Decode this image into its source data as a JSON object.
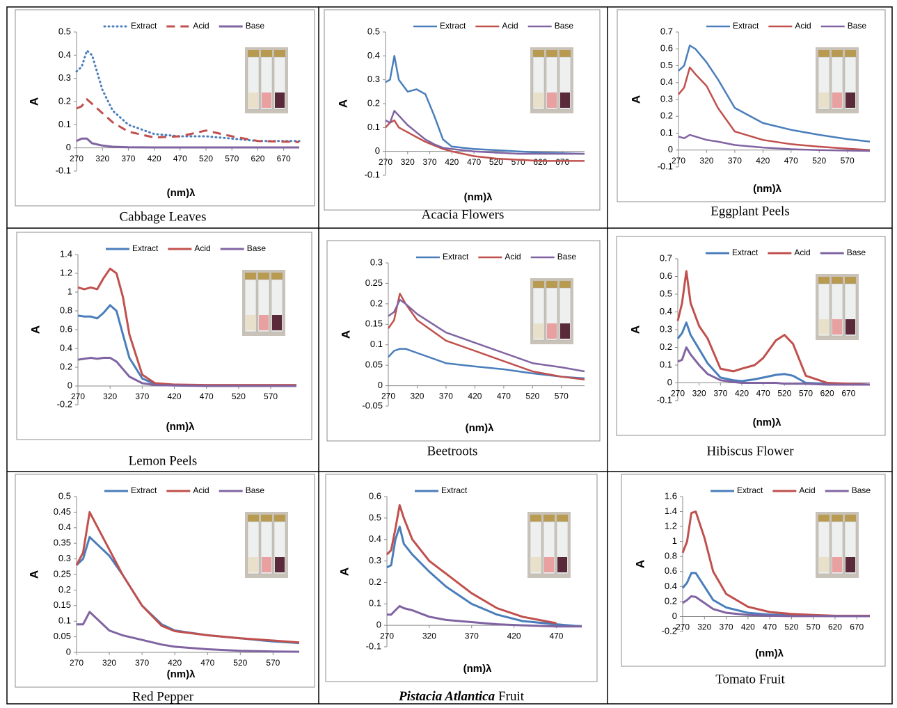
{
  "chart_data": [
    {
      "type": "line",
      "caption": "Cabbage Leaves",
      "x_label": "(nm)λ",
      "y_label": "A",
      "legend": "top",
      "line_width": 3,
      "x": [
        270,
        280,
        290,
        300,
        320,
        340,
        370,
        420,
        470,
        520,
        570,
        620,
        700
      ],
      "xlim": [
        270,
        700
      ],
      "xticks": [
        270,
        320,
        370,
        420,
        470,
        520,
        570,
        620,
        670
      ],
      "ylim": [
        -0.1,
        0.5
      ],
      "yticks": [
        -0.1,
        0,
        0.1,
        0.2,
        0.3,
        0.4,
        0.5
      ],
      "series": [
        {
          "name": "Extract",
          "color": "#4a7ebb",
          "dash": "dotted",
          "values": [
            0.33,
            0.35,
            0.42,
            0.4,
            0.25,
            0.16,
            0.1,
            0.06,
            0.05,
            0.05,
            0.04,
            0.03,
            0.03
          ]
        },
        {
          "name": "Acid",
          "color": "#c0504d",
          "dash": "dashed",
          "values": [
            0.17,
            0.18,
            0.21,
            0.19,
            0.15,
            0.11,
            0.07,
            0.045,
            0.05,
            0.075,
            0.05,
            0.03,
            0.025
          ]
        },
        {
          "name": "Base",
          "color": "#8064a2",
          "values": [
            0.03,
            0.04,
            0.04,
            0.02,
            0.01,
            0.005,
            0.003,
            0.002,
            0.002,
            0.002,
            0.002,
            0.002,
            0.002
          ]
        }
      ]
    },
    {
      "type": "line",
      "caption": "Acacia Flowers",
      "x_label": "(nm)λ",
      "y_label": "A",
      "legend": "top",
      "line_width": 2.5,
      "x": [
        270,
        280,
        290,
        300,
        320,
        340,
        360,
        380,
        400,
        420,
        470,
        520,
        570,
        620,
        720
      ],
      "xlim": [
        270,
        720
      ],
      "xticks": [
        270,
        320,
        370,
        420,
        470,
        520,
        570,
        620,
        670
      ],
      "ylim": [
        -0.1,
        0.5
      ],
      "yticks": [
        -0.1,
        0,
        0.1,
        0.2,
        0.3,
        0.4,
        0.5
      ],
      "series": [
        {
          "name": "Extract",
          "color": "#4a7ebb",
          "values": [
            0.29,
            0.3,
            0.4,
            0.3,
            0.25,
            0.26,
            0.24,
            0.15,
            0.05,
            0.02,
            0.01,
            0.005,
            0,
            -0.005,
            -0.01
          ]
        },
        {
          "name": "Acid",
          "color": "#c0504d",
          "values": [
            0.1,
            0.12,
            0.13,
            0.1,
            0.08,
            0.06,
            0.04,
            0.025,
            0.01,
            0,
            -0.02,
            -0.03,
            -0.035,
            -0.04,
            -0.04
          ]
        },
        {
          "name": "Base",
          "color": "#8064a2",
          "values": [
            0.13,
            0.12,
            0.17,
            0.15,
            0.11,
            0.08,
            0.05,
            0.03,
            0.015,
            0.01,
            0,
            -0.005,
            -0.01,
            -0.01,
            -0.01
          ]
        }
      ]
    },
    {
      "type": "line",
      "caption": "Eggplant Peels",
      "x_label": "(nm)λ",
      "y_label": "A",
      "legend": "top",
      "line_width": 2.5,
      "x": [
        270,
        280,
        290,
        300,
        320,
        340,
        370,
        420,
        470,
        520,
        570,
        610
      ],
      "xlim": [
        270,
        610
      ],
      "xticks": [
        270,
        320,
        370,
        420,
        470,
        520,
        570
      ],
      "ylim": [
        -0.1,
        0.7
      ],
      "yticks": [
        -0.1,
        0,
        0.1,
        0.2,
        0.3,
        0.4,
        0.5,
        0.6,
        0.7
      ],
      "series": [
        {
          "name": "Extract",
          "color": "#4a7ebb",
          "values": [
            0.47,
            0.5,
            0.62,
            0.6,
            0.52,
            0.42,
            0.25,
            0.16,
            0.12,
            0.09,
            0.065,
            0.05
          ]
        },
        {
          "name": "Acid",
          "color": "#c0504d",
          "values": [
            0.33,
            0.37,
            0.49,
            0.45,
            0.38,
            0.25,
            0.11,
            0.06,
            0.035,
            0.02,
            0.008,
            0
          ]
        },
        {
          "name": "Base",
          "color": "#8064a2",
          "values": [
            0.08,
            0.07,
            0.09,
            0.08,
            0.06,
            0.05,
            0.03,
            0.015,
            0.005,
            0,
            -0.003,
            -0.005
          ]
        }
      ]
    },
    {
      "type": "line",
      "caption": "Lemon Peels",
      "x_label": "(nm)λ",
      "y_label": "A",
      "legend": "top",
      "line_width": 3,
      "x": [
        270,
        280,
        290,
        300,
        310,
        320,
        330,
        340,
        350,
        370,
        390,
        420,
        470,
        520,
        570,
        610
      ],
      "xlim": [
        270,
        610
      ],
      "xticks": [
        270,
        320,
        370,
        420,
        470,
        520,
        570
      ],
      "ylim": [
        -0.2,
        1.4
      ],
      "yticks": [
        -0.2,
        0,
        0.2,
        0.4,
        0.6,
        0.8,
        1,
        1.2,
        1.4
      ],
      "series": [
        {
          "name": "Extract",
          "color": "#4a7ebb",
          "values": [
            0.75,
            0.74,
            0.74,
            0.72,
            0.78,
            0.86,
            0.8,
            0.55,
            0.3,
            0.08,
            0.02,
            0.01,
            0.005,
            0.005,
            0.005,
            0.005
          ]
        },
        {
          "name": "Acid",
          "color": "#c0504d",
          "values": [
            1.05,
            1.03,
            1.05,
            1.03,
            1.15,
            1.25,
            1.2,
            0.95,
            0.55,
            0.12,
            0.03,
            0.015,
            0.01,
            0.01,
            0.01,
            0.01
          ]
        },
        {
          "name": "Base",
          "color": "#8064a2",
          "values": [
            0.28,
            0.29,
            0.3,
            0.29,
            0.3,
            0.3,
            0.26,
            0.18,
            0.1,
            0.03,
            0.01,
            0.005,
            0,
            0,
            0,
            0
          ]
        }
      ]
    },
    {
      "type": "line",
      "caption": "Beetroots",
      "x_label": "(nm)λ",
      "y_label": "A",
      "legend": "top",
      "line_width": 2.5,
      "x": [
        270,
        280,
        290,
        300,
        320,
        370,
        420,
        470,
        520,
        570,
        610
      ],
      "xlim": [
        270,
        610
      ],
      "xticks": [
        270,
        320,
        370,
        420,
        470,
        520,
        570
      ],
      "ylim": [
        -0.05,
        0.3
      ],
      "yticks": [
        -0.05,
        0,
        0.05,
        0.1,
        0.15,
        0.2,
        0.25,
        0.3
      ],
      "series": [
        {
          "name": "Extract",
          "color": "#4a7ebb",
          "values": [
            0.07,
            0.085,
            0.09,
            0.09,
            0.08,
            0.055,
            0.047,
            0.04,
            0.03,
            0.022,
            0.018
          ]
        },
        {
          "name": "Acid",
          "color": "#c0504d",
          "values": [
            0.14,
            0.16,
            0.225,
            0.2,
            0.16,
            0.11,
            0.085,
            0.06,
            0.035,
            0.022,
            0.015
          ]
        },
        {
          "name": "Base",
          "color": "#8064a2",
          "values": [
            0.17,
            0.18,
            0.21,
            0.2,
            0.175,
            0.13,
            0.105,
            0.08,
            0.055,
            0.045,
            0.035
          ]
        }
      ]
    },
    {
      "type": "line",
      "caption": "Hibiscus Flower",
      "x_label": "(nm)λ",
      "y_label": "A",
      "legend": "top",
      "line_width": 3,
      "x": [
        270,
        280,
        290,
        300,
        320,
        340,
        370,
        400,
        420,
        450,
        470,
        500,
        520,
        540,
        570,
        620,
        720
      ],
      "xlim": [
        270,
        720
      ],
      "xticks": [
        270,
        320,
        370,
        420,
        470,
        520,
        570,
        620,
        670
      ],
      "ylim": [
        -0.1,
        0.7
      ],
      "yticks": [
        -0.1,
        0,
        0.1,
        0.2,
        0.3,
        0.4,
        0.5,
        0.6,
        0.7
      ],
      "series": [
        {
          "name": "Extract",
          "color": "#4a7ebb",
          "values": [
            0.25,
            0.28,
            0.34,
            0.27,
            0.19,
            0.11,
            0.03,
            0.015,
            0.01,
            0.02,
            0.03,
            0.045,
            0.05,
            0.04,
            0,
            -0.005,
            -0.01
          ]
        },
        {
          "name": "Acid",
          "color": "#c0504d",
          "values": [
            0.35,
            0.45,
            0.63,
            0.45,
            0.32,
            0.25,
            0.08,
            0.065,
            0.08,
            0.1,
            0.14,
            0.24,
            0.27,
            0.22,
            0.04,
            0,
            -0.01
          ]
        },
        {
          "name": "Base",
          "color": "#8064a2",
          "values": [
            0.12,
            0.13,
            0.2,
            0.16,
            0.1,
            0.05,
            0.015,
            0.005,
            0,
            0,
            0,
            0,
            -0.005,
            -0.005,
            -0.005,
            -0.01,
            -0.01
          ]
        }
      ]
    },
    {
      "type": "line",
      "caption": "Red Pepper",
      "x_label": "(nm)λ",
      "y_label": "A",
      "legend": "top",
      "line_width": 3,
      "x": [
        270,
        280,
        290,
        300,
        320,
        340,
        370,
        400,
        420,
        470,
        520,
        570,
        610
      ],
      "xlim": [
        270,
        610
      ],
      "xticks": [
        270,
        320,
        370,
        420,
        470,
        520,
        570
      ],
      "ylim": [
        0,
        0.5
      ],
      "yticks": [
        0,
        0.05,
        0.1,
        0.15,
        0.2,
        0.25,
        0.3,
        0.35,
        0.4,
        0.45,
        0.5
      ],
      "series": [
        {
          "name": "Extract",
          "color": "#4a7ebb",
          "values": [
            0.28,
            0.3,
            0.37,
            0.35,
            0.31,
            0.25,
            0.15,
            0.09,
            0.07,
            0.055,
            0.045,
            0.035,
            0.03
          ]
        },
        {
          "name": "Acid",
          "color": "#c0504d",
          "values": [
            0.28,
            0.32,
            0.45,
            0.41,
            0.33,
            0.25,
            0.15,
            0.085,
            0.068,
            0.055,
            0.045,
            0.038,
            0.032
          ]
        },
        {
          "name": "Base",
          "color": "#8064a2",
          "values": [
            0.09,
            0.09,
            0.13,
            0.11,
            0.07,
            0.055,
            0.04,
            0.025,
            0.018,
            0.01,
            0.005,
            0.003,
            0.002
          ]
        }
      ]
    },
    {
      "type": "line",
      "caption": [
        "Pistacia Atlantica",
        "Fruit"
      ],
      "x_label": "(nm)λ",
      "y_label": "A",
      "legend": "top",
      "line_width": 3,
      "x": [
        270,
        275,
        280,
        285,
        290,
        300,
        320,
        340,
        370,
        400,
        430,
        470,
        500
      ],
      "xlim": [
        270,
        500
      ],
      "xticks": [
        270,
        320,
        370,
        420,
        470
      ],
      "ylim": [
        -0.1,
        0.6
      ],
      "yticks": [
        -0.1,
        0,
        0.1,
        0.2,
        0.3,
        0.4,
        0.5,
        0.6
      ],
      "series": [
        {
          "name": "Extract",
          "color": "#4a7ebb",
          "values": [
            0.27,
            0.28,
            0.4,
            0.46,
            0.38,
            0.33,
            0.25,
            0.18,
            0.1,
            0.05,
            0.02,
            0.005,
            -0.005
          ]
        },
        {
          "color": "#c0504d",
          "values": [
            0.33,
            0.35,
            0.45,
            0.56,
            0.5,
            0.4,
            0.3,
            0.24,
            0.15,
            0.08,
            0.04,
            0.01,
            null
          ]
        },
        {
          "color": "#8064a2",
          "values": [
            0.05,
            0.05,
            0.07,
            0.09,
            0.08,
            0.07,
            0.04,
            0.025,
            0.015,
            0.005,
            0,
            -0.005,
            -0.005
          ]
        }
      ]
    },
    {
      "type": "line",
      "caption": "Tomato Fruit",
      "x_label": "(nm)λ",
      "y_label": "A",
      "legend": "top",
      "line_width": 3,
      "x": [
        270,
        280,
        290,
        300,
        320,
        340,
        370,
        420,
        470,
        520,
        570,
        620,
        700
      ],
      "xlim": [
        270,
        700
      ],
      "xticks": [
        270,
        320,
        370,
        420,
        470,
        520,
        570,
        620,
        670
      ],
      "ylim": [
        -0.2,
        1.6
      ],
      "yticks": [
        -0.2,
        0,
        0.2,
        0.4,
        0.6,
        0.8,
        1,
        1.2,
        1.4,
        1.6
      ],
      "series": [
        {
          "name": "Extract",
          "color": "#4a7ebb",
          "values": [
            0.38,
            0.45,
            0.58,
            0.58,
            0.4,
            0.22,
            0.12,
            0.05,
            0.025,
            0.015,
            0.01,
            0.005,
            0.005
          ]
        },
        {
          "name": "Acid",
          "color": "#c0504d",
          "values": [
            0.85,
            1.0,
            1.38,
            1.4,
            1.05,
            0.6,
            0.3,
            0.13,
            0.06,
            0.035,
            0.02,
            0.01,
            0.01
          ]
        },
        {
          "name": "Base",
          "color": "#8064a2",
          "values": [
            0.18,
            0.22,
            0.27,
            0.26,
            0.18,
            0.1,
            0.05,
            0.02,
            0.01,
            0.005,
            0.005,
            0.005,
            0.005
          ]
        }
      ]
    }
  ]
}
